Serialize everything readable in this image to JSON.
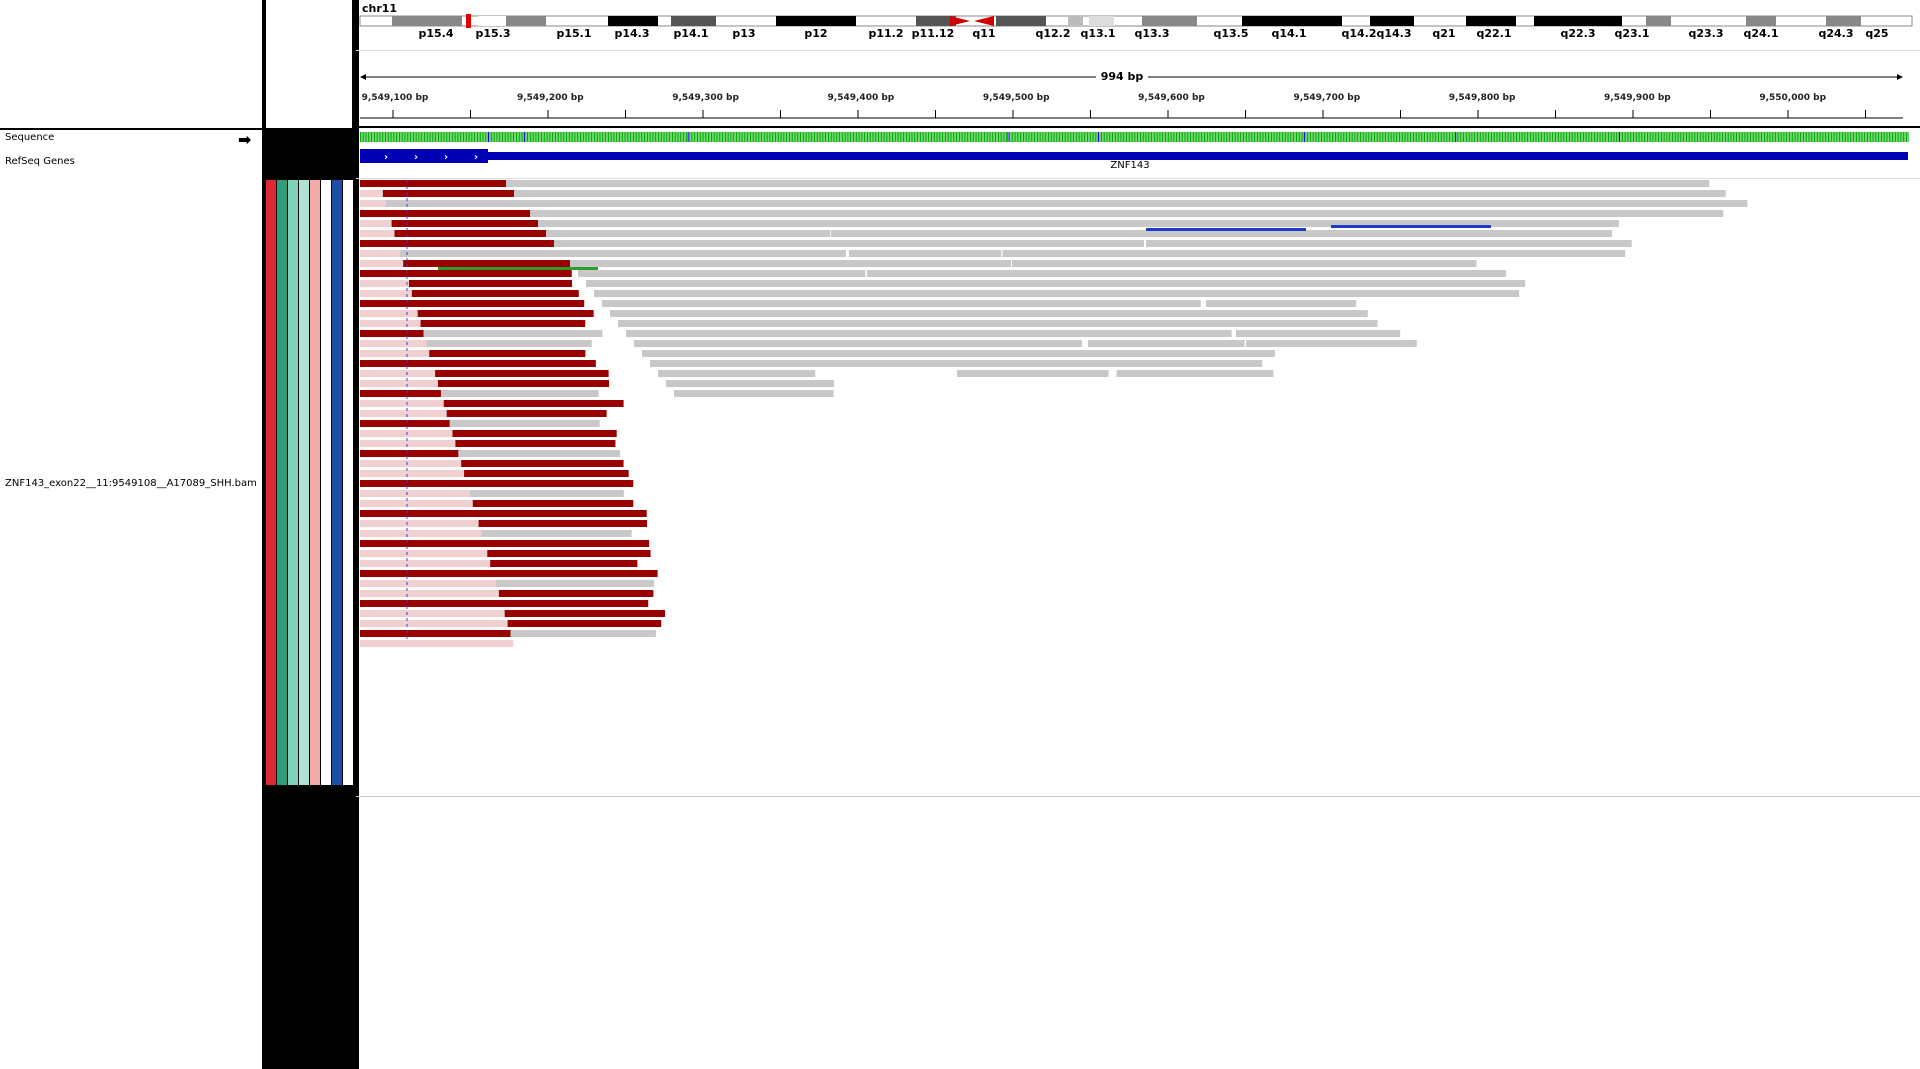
{
  "locus": {
    "chromosome": "chr11",
    "span": "994 bp"
  },
  "ideogram": {
    "bands": [
      "p15.4",
      "p15.3",
      "p15.1",
      "p14.3",
      "p14.1",
      "p13",
      "p12",
      "p11.2",
      "p11.12",
      "q11",
      "q12.2",
      "q13.1",
      "q13.3",
      "q13.5",
      "q14.1",
      "q14.2",
      "q14.3",
      "q21",
      "q22.1",
      "q22.3",
      "q23.1",
      "q23.3",
      "q24.1",
      "q24.3",
      "q25"
    ]
  },
  "ruler": {
    "ticks": [
      "9,549,100 bp",
      "9,549,200 bp",
      "9,549,300 bp",
      "9,549,400 bp",
      "9,549,500 bp",
      "9,549,600 bp",
      "9,549,700 bp",
      "9,549,800 bp",
      "9,549,900 bp",
      "9,550,000 bp"
    ]
  },
  "tracks": {
    "sequence": "Sequence",
    "refseq": "RefSeq Genes",
    "gene_name": "ZNF143",
    "bam": "ZNF143_exon22__11:9549108__A17089_SHH.bam"
  },
  "colors": {
    "read_gray": "#c8c8c8",
    "read_red": "#990000",
    "gene_blue": "#0000b4",
    "attr_colors": [
      "#e32636",
      "#2e9e78",
      "#7fd1b9",
      "#aee3d2",
      "#f5a8a8",
      "#ffffff",
      "#1d4fa8",
      "#ffffff"
    ]
  },
  "icons": {
    "sequence_strand": "right-arrow-icon"
  }
}
